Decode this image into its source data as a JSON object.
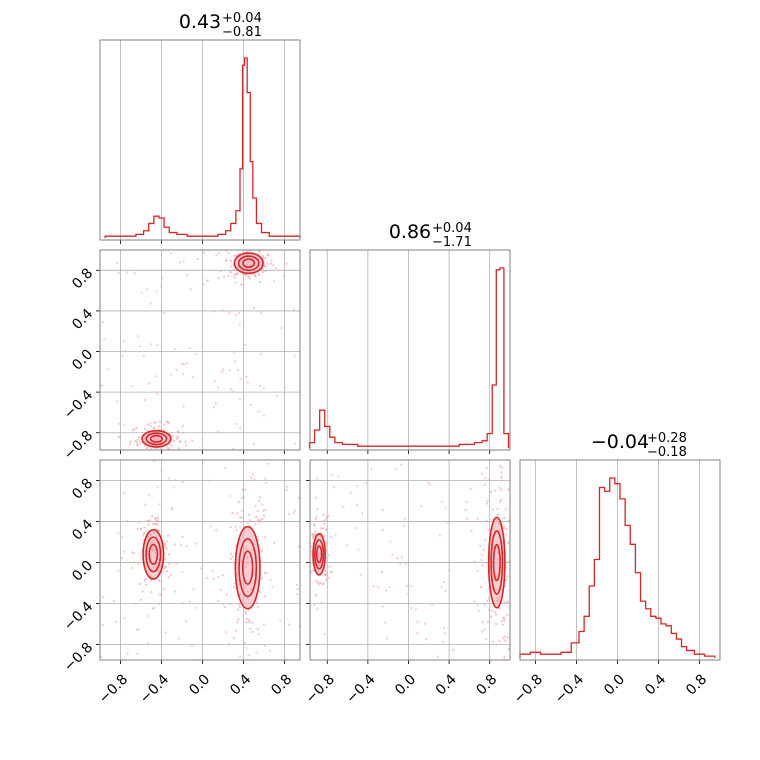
{
  "colors": {
    "accent": "#d62728",
    "fill": "#f2a7b0",
    "grid": "#b0b0b0",
    "frame": "#808080"
  },
  "chart_data": {
    "type": "corner",
    "parameters": 3,
    "grid": true,
    "ticks": {
      "p1": {
        "values": [
          -0.8,
          -0.4,
          0.0,
          0.4,
          0.8
        ],
        "labels": [
          "−0.8",
          "−0.4",
          "0.0",
          "0.4",
          "0.8"
        ],
        "range": [
          -1.0,
          0.95
        ]
      },
      "p2": {
        "values": [
          -0.8,
          -0.4,
          0.0,
          0.4,
          0.8
        ],
        "labels": [
          "−0.8",
          "−0.4",
          "0.0",
          "0.4",
          "0.8"
        ],
        "range": [
          -0.97,
          1.0
        ]
      },
      "p3": {
        "values": [
          -0.8,
          -0.4,
          0.0,
          0.4,
          0.8
        ],
        "labels": [
          "−0.8",
          "−0.4",
          "0.0",
          "0.4",
          "0.8"
        ],
        "range": [
          -0.95,
          1.0
        ]
      }
    },
    "titles": [
      {
        "value": "0.43",
        "plus": "+0.04",
        "minus": "−0.81"
      },
      {
        "value": "0.86",
        "plus": "+0.04",
        "minus": "−1.71"
      },
      {
        "value": "−0.04",
        "plus": "+0.28",
        "minus": "−0.18"
      }
    ],
    "histograms": [
      {
        "param": "p1",
        "x": [
          -0.9,
          -0.8,
          -0.7,
          -0.6,
          -0.55,
          -0.5,
          -0.45,
          -0.4,
          -0.35,
          -0.3,
          -0.2,
          -0.1,
          0.0,
          0.1,
          0.2,
          0.25,
          0.3,
          0.35,
          0.38,
          0.4,
          0.42,
          0.45,
          0.48,
          0.5,
          0.55,
          0.6,
          0.7,
          0.8,
          0.9
        ],
        "counts": [
          1,
          1,
          1,
          2,
          4,
          8,
          12,
          11,
          6,
          3,
          2,
          1,
          1,
          1,
          2,
          4,
          8,
          15,
          38,
          95,
          99,
          80,
          42,
          22,
          8,
          3,
          1,
          1,
          1
        ]
      },
      {
        "param": "p2",
        "x": [
          -0.95,
          -0.9,
          -0.85,
          -0.8,
          -0.75,
          -0.7,
          -0.6,
          -0.4,
          -0.2,
          0.0,
          0.2,
          0.4,
          0.6,
          0.7,
          0.75,
          0.8,
          0.85,
          0.88,
          0.92,
          0.96
        ],
        "counts": [
          3,
          10,
          21,
          12,
          6,
          3,
          2,
          1,
          1,
          1,
          1,
          1,
          2,
          3,
          4,
          8,
          35,
          99,
          100,
          8
        ]
      },
      {
        "param": "p3",
        "x": [
          -0.9,
          -0.8,
          -0.7,
          -0.6,
          -0.5,
          -0.4,
          -0.35,
          -0.3,
          -0.25,
          -0.2,
          -0.15,
          -0.1,
          -0.05,
          0.0,
          0.05,
          0.1,
          0.15,
          0.2,
          0.25,
          0.3,
          0.35,
          0.4,
          0.45,
          0.5,
          0.55,
          0.6,
          0.65,
          0.7,
          0.8,
          0.9
        ],
        "counts": [
          2,
          3,
          2,
          2,
          3,
          8,
          14,
          22,
          38,
          52,
          90,
          88,
          95,
          92,
          84,
          70,
          60,
          45,
          30,
          26,
          22,
          21,
          18,
          17,
          13,
          10,
          6,
          4,
          2,
          1
        ]
      }
    ],
    "scatter_panels": [
      {
        "x": "p1",
        "y": "p2",
        "modes": [
          {
            "cx": 0.45,
            "cy": 0.87,
            "sx": 0.07,
            "sy": 0.05
          },
          {
            "cx": -0.45,
            "cy": -0.86,
            "sx": 0.07,
            "sy": 0.04
          }
        ]
      },
      {
        "x": "p1",
        "y": "p3",
        "modes": [
          {
            "cx": 0.44,
            "cy": -0.05,
            "sx": 0.06,
            "sy": 0.2
          },
          {
            "cx": -0.48,
            "cy": 0.08,
            "sx": 0.05,
            "sy": 0.12
          }
        ]
      },
      {
        "x": "p2",
        "y": "p3",
        "modes": [
          {
            "cx": 0.87,
            "cy": 0.0,
            "sx": 0.04,
            "sy": 0.22
          },
          {
            "cx": -0.88,
            "cy": 0.08,
            "sx": 0.03,
            "sy": 0.1
          }
        ]
      }
    ]
  }
}
